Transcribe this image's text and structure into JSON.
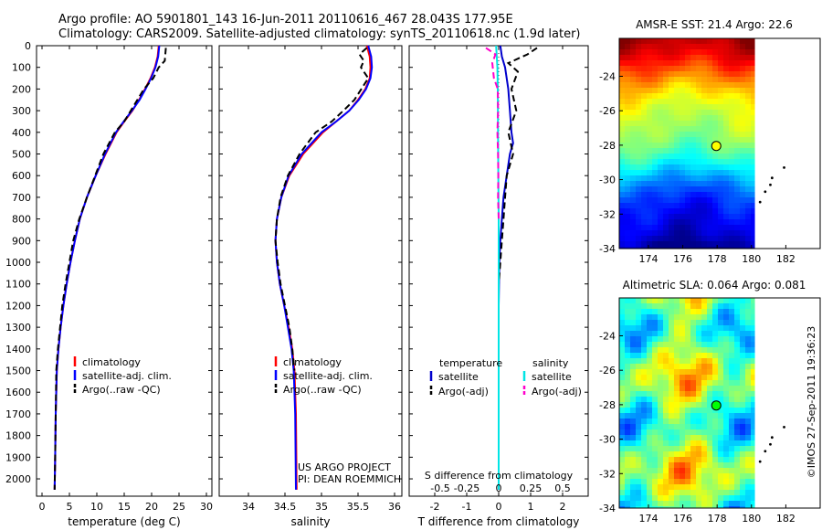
{
  "header": {
    "line1": "Argo profile: AO 5901801_143 16-Jun-2011 20110616_467 28.043S 177.95E",
    "line2": "Climatology: CARS2009. Satellite-adjusted climatology: synTS_20110618.nc (1.9d later)"
  },
  "side_stamp": "©IMOS 27-Sep-2011 19:36:23",
  "chart_data": [
    {
      "type": "line",
      "id": "temperature",
      "xlabel": "temperature (deg C)",
      "ylabel": "",
      "xlim": [
        -1,
        31
      ],
      "ylim": [
        2080,
        0
      ],
      "xticks": [
        0,
        5,
        10,
        15,
        20,
        25,
        30
      ],
      "yticks": [
        0,
        100,
        200,
        300,
        400,
        500,
        600,
        700,
        800,
        900,
        1000,
        1100,
        1200,
        1300,
        1400,
        1500,
        1600,
        1700,
        1800,
        1900,
        2000
      ],
      "legend": {
        "placement": "lower-center",
        "entries": [
          "climatology",
          "satellite-adj. clim.",
          "Argo(..raw -QC)"
        ]
      },
      "series": [
        {
          "name": "climatology",
          "color": "#ff0000",
          "dash": "solid",
          "x": [
            21.3,
            21.1,
            20.6,
            19.8,
            18.8,
            17.7,
            16.5,
            15.0,
            13.6,
            11.6,
            9.8,
            8.2,
            6.9,
            6.0,
            5.2,
            4.5,
            3.9,
            3.4,
            3.0,
            2.7,
            2.5,
            2.4,
            2.3
          ],
          "y": [
            0,
            50,
            100,
            150,
            200,
            250,
            300,
            350,
            400,
            500,
            600,
            700,
            800,
            900,
            1000,
            1100,
            1200,
            1300,
            1400,
            1500,
            1700,
            1900,
            2050
          ]
        },
        {
          "name": "satellite-adj. clim.",
          "color": "#0000ff",
          "dash": "solid",
          "x": [
            21.4,
            21.2,
            20.7,
            19.9,
            18.9,
            17.8,
            16.4,
            14.9,
            13.5,
            11.5,
            9.8,
            8.2,
            6.9,
            6.0,
            5.2,
            4.5,
            3.9,
            3.4,
            3.0,
            2.7,
            2.5,
            2.4,
            2.3
          ],
          "y": [
            0,
            50,
            100,
            150,
            200,
            250,
            300,
            350,
            400,
            500,
            600,
            700,
            800,
            900,
            1000,
            1100,
            1200,
            1300,
            1400,
            1500,
            1700,
            1900,
            2050
          ]
        },
        {
          "name": "Argo(..raw -QC)",
          "color": "#000000",
          "dash": "dashed",
          "x": [
            22.6,
            22.5,
            22.4,
            21.3,
            20.3,
            18.6,
            17.4,
            16.2,
            15.0,
            13.3,
            11.2,
            9.7,
            8.2,
            6.8,
            5.7,
            5.0,
            4.3,
            3.7,
            3.3,
            2.9,
            2.6,
            2.5,
            2.4,
            2.3
          ],
          "y": [
            10,
            40,
            70,
            100,
            150,
            200,
            250,
            300,
            350,
            400,
            500,
            600,
            700,
            800,
            900,
            1000,
            1100,
            1200,
            1300,
            1400,
            1500,
            1700,
            1900,
            2050
          ]
        }
      ]
    },
    {
      "type": "line",
      "id": "salinity",
      "xlabel": "salinity",
      "xlim": [
        33.6,
        36.1
      ],
      "ylim": [
        2080,
        0
      ],
      "xticks": [
        34,
        34.5,
        35,
        35.5,
        36
      ],
      "legend": {
        "placement": "lower-center",
        "entries": [
          "climatology",
          "satellite-adj. clim.",
          "Argo(..raw -QC)"
        ]
      },
      "annotations": [
        "US ARGO PROJECT",
        "PI: DEAN ROEMMICH"
      ],
      "series": [
        {
          "name": "climatology",
          "color": "#ff0000",
          "dash": "solid",
          "x": [
            35.62,
            35.66,
            35.67,
            35.66,
            35.6,
            35.5,
            35.38,
            35.2,
            35.02,
            34.75,
            34.56,
            34.45,
            34.39,
            34.37,
            34.39,
            34.43,
            34.49,
            34.55,
            34.6,
            34.63,
            34.65,
            34.66
          ],
          "y": [
            0,
            50,
            100,
            150,
            200,
            250,
            300,
            350,
            400,
            500,
            600,
            700,
            800,
            900,
            1000,
            1100,
            1200,
            1300,
            1400,
            1500,
            1700,
            2050
          ]
        },
        {
          "name": "satellite-adj. clim.",
          "color": "#0000ff",
          "dash": "solid",
          "x": [
            35.64,
            35.68,
            35.69,
            35.67,
            35.61,
            35.51,
            35.38,
            35.2,
            35.0,
            34.73,
            34.55,
            34.45,
            34.39,
            34.37,
            34.39,
            34.43,
            34.49,
            34.54,
            34.59,
            34.62,
            34.64,
            34.65
          ],
          "y": [
            0,
            50,
            100,
            150,
            200,
            250,
            300,
            350,
            400,
            500,
            600,
            700,
            800,
            900,
            1000,
            1100,
            1200,
            1300,
            1400,
            1500,
            1700,
            2050
          ]
        },
        {
          "name": "Argo(..raw -QC)",
          "color": "#000000",
          "dash": "dashed",
          "x": [
            35.62,
            35.52,
            35.58,
            35.54,
            35.64,
            35.45,
            35.3,
            35.14,
            34.92,
            34.7,
            34.54,
            34.44,
            34.39,
            34.37,
            34.4,
            34.44,
            34.5,
            34.56,
            34.6,
            34.63
          ],
          "y": [
            10,
            40,
            70,
            100,
            150,
            250,
            300,
            350,
            400,
            500,
            600,
            700,
            800,
            900,
            1000,
            1100,
            1200,
            1300,
            1400,
            1500
          ]
        }
      ]
    },
    {
      "type": "line",
      "id": "differences",
      "xlabel": "T difference from climatology",
      "xlabel_top": "S difference from climatology",
      "xlim": [
        -2.8,
        2.8
      ],
      "ylim": [
        2080,
        0
      ],
      "xticks": [
        -2,
        -1,
        0,
        1,
        2
      ],
      "xticks_s": [
        "-0.5",
        "-0.25",
        "0",
        "0.25",
        "0.5"
      ],
      "legend": {
        "placement": "lower-center",
        "headers": [
          "temperature",
          "salinity"
        ],
        "entries": [
          "satellite",
          "Argo(-adj)",
          "satellite",
          "Argo(-adj)"
        ]
      },
      "series": [
        {
          "name": "temperature satellite",
          "color": "#0000cc",
          "dash": "solid",
          "x": [
            0.05,
            0.1,
            0.2,
            0.3,
            0.35,
            0.4,
            0.45,
            0.35,
            0.25,
            0.15,
            0.1,
            0.05,
            0.02,
            0.0,
            0.0,
            0.0,
            0.0
          ],
          "y": [
            0,
            50,
            100,
            200,
            300,
            400,
            450,
            500,
            600,
            700,
            800,
            900,
            1000,
            1200,
            1500,
            1800,
            2050
          ]
        },
        {
          "name": "temperature Argo(-adj)",
          "color": "#000000",
          "dash": "dashed",
          "x": [
            1.2,
            0.9,
            0.3,
            0.6,
            0.4,
            0.55,
            0.3,
            0.45,
            0.25,
            0.2,
            0.15,
            0.1,
            0.05,
            0.0
          ],
          "y": [
            10,
            40,
            80,
            120,
            200,
            300,
            400,
            500,
            600,
            700,
            800,
            900,
            1000,
            1100
          ]
        },
        {
          "name": "salinity satellite",
          "color": "#00e5e5",
          "dash": "solid",
          "x": [
            -0.08,
            -0.06,
            -0.04,
            -0.03,
            -0.02,
            -0.01,
            0.0,
            0.0,
            0.0,
            0.0,
            0.0
          ],
          "y": [
            0,
            50,
            100,
            200,
            400,
            600,
            800,
            1000,
            1400,
            1800,
            2050
          ]
        },
        {
          "name": "salinity Argo(-adj)",
          "color": "#ff00cc",
          "dash": "dashed",
          "x": [
            -0.4,
            -0.1,
            -0.2,
            -0.15,
            -0.03,
            -0.02,
            -0.04,
            -0.02,
            -0.01,
            -0.02,
            0.0
          ],
          "y": [
            10,
            40,
            80,
            150,
            200,
            300,
            400,
            500,
            600,
            700,
            800
          ]
        }
      ]
    },
    {
      "type": "heatmap",
      "id": "sst-map",
      "title": "AMSR-E SST: 21.4  Argo: 22.6",
      "xticks": [
        174,
        176,
        178,
        180,
        182
      ],
      "yticks": [
        -24,
        -26,
        -28,
        -30,
        -32,
        -34
      ],
      "xlim": [
        172.3,
        184.0
      ],
      "ylim": [
        -34.0,
        -21.8
      ],
      "argo_marker": {
        "lon": 177.95,
        "lat": -28.043,
        "color": "#ffff00"
      },
      "land_points": [
        {
          "lon": 181.9,
          "lat": -29.3
        },
        {
          "lon": 181.2,
          "lat": -29.9
        },
        {
          "lon": 181.1,
          "lat": -30.3
        },
        {
          "lon": 180.8,
          "lat": -30.7
        },
        {
          "lon": 180.5,
          "lat": -31.3
        }
      ]
    },
    {
      "type": "heatmap",
      "id": "sla-map",
      "title": "Altimetric SLA: 0.064  Argo: 0.081",
      "xticks": [
        174,
        176,
        178,
        180,
        182
      ],
      "yticks": [
        -24,
        -26,
        -28,
        -30,
        -32,
        -34
      ],
      "xlim": [
        172.3,
        184.0
      ],
      "ylim": [
        -34.0,
        -21.8
      ],
      "argo_marker": {
        "lon": 177.95,
        "lat": -28.043,
        "color": "#00ff00"
      },
      "land_points": [
        {
          "lon": 181.9,
          "lat": -29.3
        },
        {
          "lon": 181.2,
          "lat": -29.9
        },
        {
          "lon": 181.1,
          "lat": -30.3
        },
        {
          "lon": 180.8,
          "lat": -30.7
        },
        {
          "lon": 180.5,
          "lat": -31.3
        }
      ]
    }
  ]
}
